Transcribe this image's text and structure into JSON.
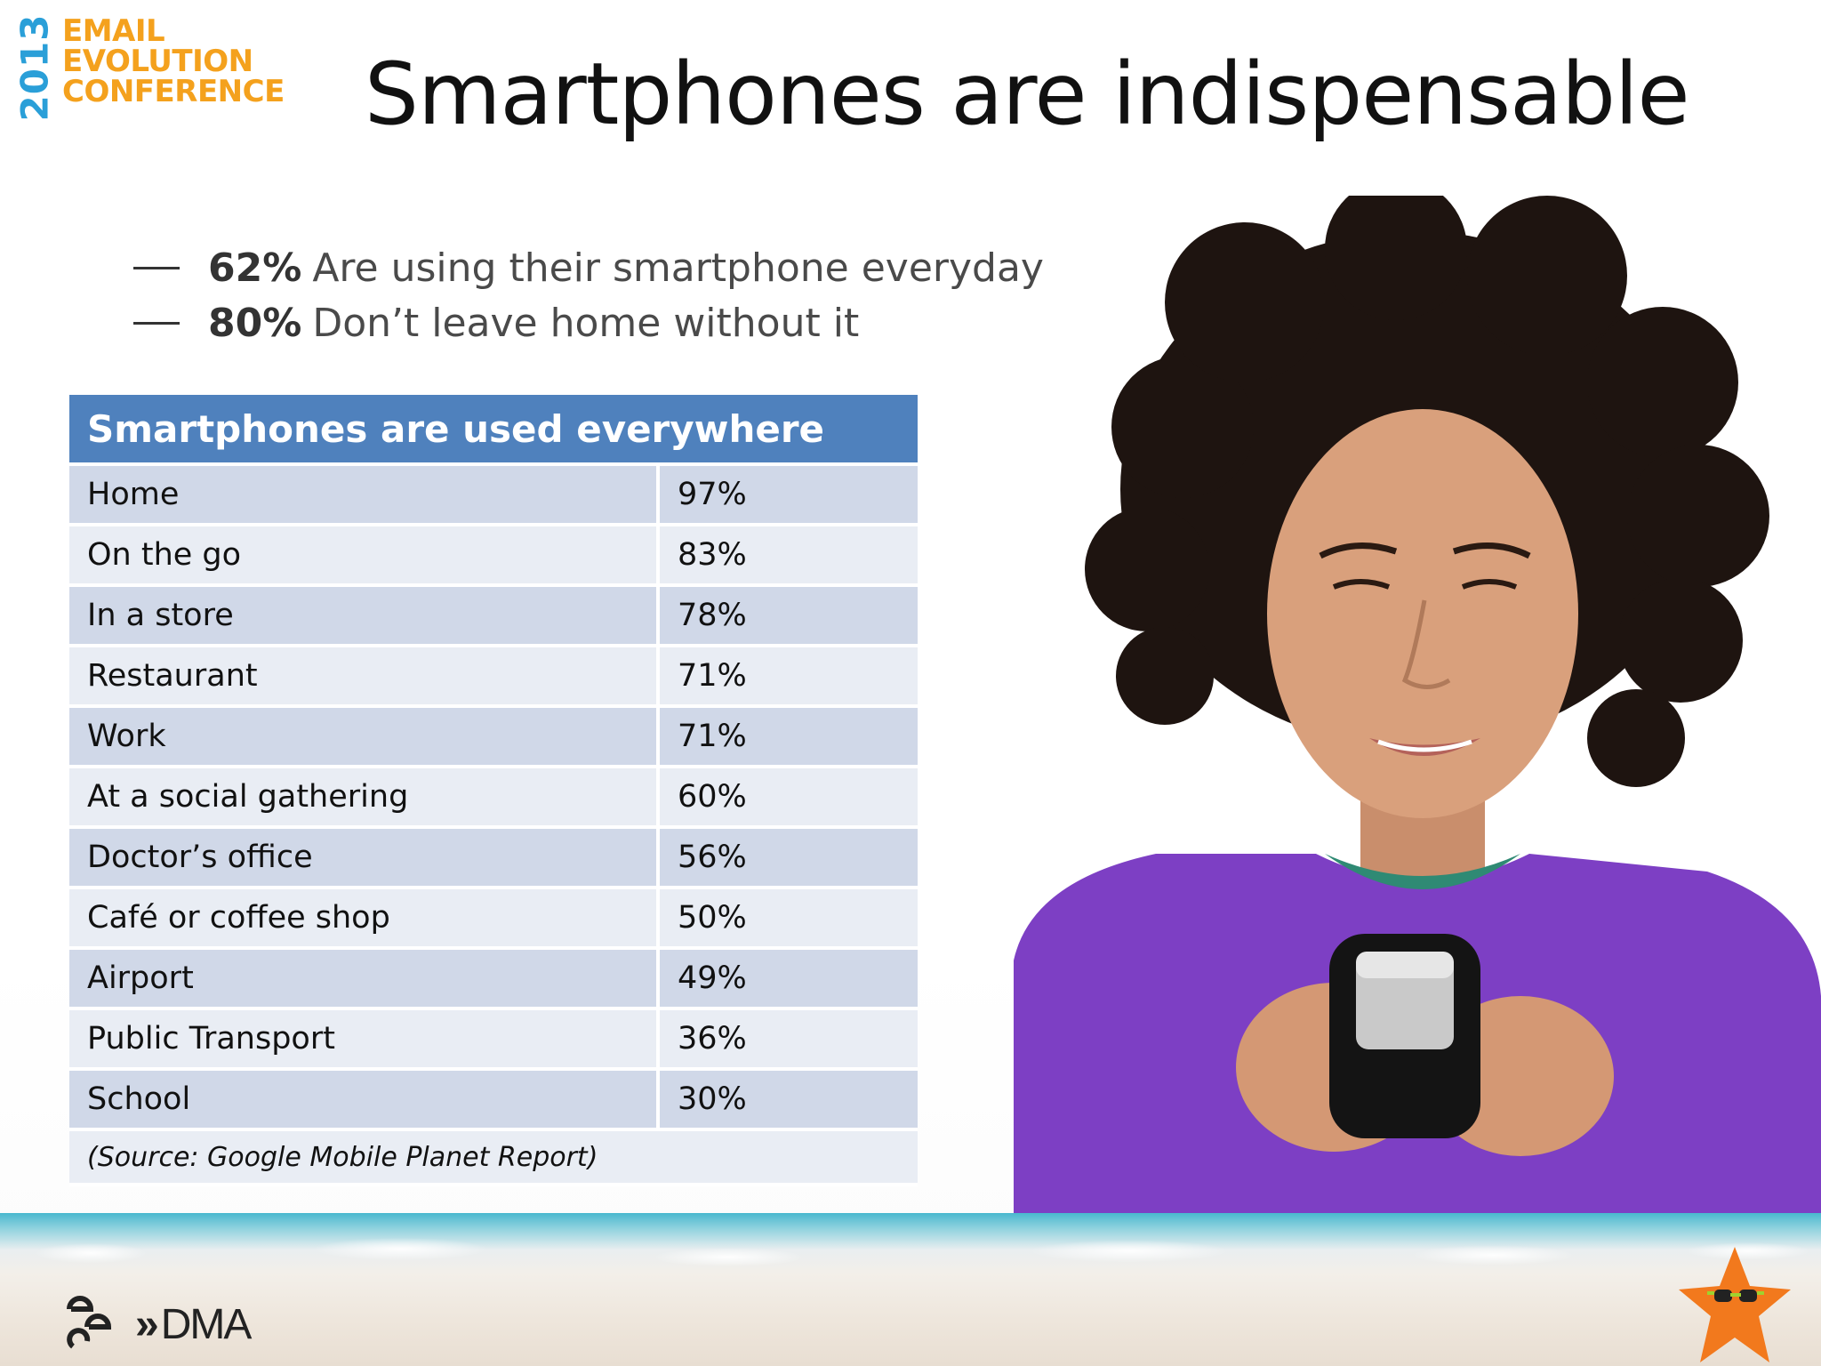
{
  "logo": {
    "year": "2013",
    "lines": [
      "EMAIL",
      "EVOLUTION",
      "CONFERENCE"
    ]
  },
  "title": "Smartphones are indispensable",
  "bullets": [
    {
      "value": "62%",
      "text": "Are using their smartphone everyday"
    },
    {
      "value": "80%",
      "text": "Don’t leave home without it"
    }
  ],
  "table": {
    "header": "Smartphones are used everywhere",
    "rows": [
      {
        "place": "Home",
        "pct": "97%"
      },
      {
        "place": "On the go",
        "pct": "83%"
      },
      {
        "place": "In a store",
        "pct": "78%"
      },
      {
        "place": "Restaurant",
        "pct": "71%"
      },
      {
        "place": "Work",
        "pct": "71%"
      },
      {
        "place": "At a social gathering",
        "pct": "60%"
      },
      {
        "place": "Doctor’s office",
        "pct": "56%"
      },
      {
        "place": "Café or coffee shop",
        "pct": "50%"
      },
      {
        "place": "Airport",
        "pct": "49%"
      },
      {
        "place": "Public Transport",
        "pct": "36%"
      },
      {
        "place": "School",
        "pct": "30%"
      }
    ],
    "source": "(Source: Google Mobile Planet Report)"
  },
  "footer": {
    "dma_label": "DMA",
    "dma_chevron": "»"
  },
  "colors": {
    "table_header": "#4f81bd",
    "row_dark": "#d0d8e8",
    "row_light": "#e9edf4",
    "logo_year": "#2a9fd8",
    "logo_words": "#f4a11d",
    "shirt": "#7d3fc4"
  },
  "icons": {
    "photo": "woman-using-smartphone-photo",
    "eec": "eec-logo-icon",
    "starfish": "starfish-sunglasses-icon"
  }
}
